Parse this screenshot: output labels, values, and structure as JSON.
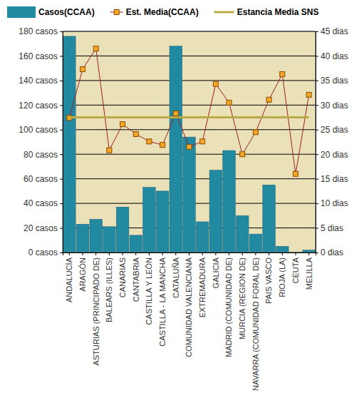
{
  "chart_data": {
    "type": "bar",
    "categories": [
      "ANDALUCÍA",
      "ARAGÓN",
      "ASTURIAS (PRINCIPADO DE)",
      "BALEARS (ILLES)",
      "CANARIAS",
      "CANTABRIA",
      "CASTILLA Y LEÓN",
      "CASTILLA - LA MANCHA",
      "CATALUÑA",
      "COMUNIDAD VALENCIANA",
      "EXTREMADURA",
      "GALICIA",
      "MADRID (COMUNIDAD DE)",
      "MURCIA (REGION DE)",
      "NAVARRA (COMUNIDAD FORAL DE)",
      "PAIS VASCO",
      "RIOJA (LA)",
      "CEUTA",
      "MELILLA"
    ],
    "series": [
      {
        "name": "Casos(CCAA)",
        "type": "bar",
        "color": "#2189a0",
        "values": [
          176,
          23,
          27,
          21,
          37,
          14,
          53,
          50,
          168,
          94,
          25,
          67,
          83,
          30,
          15,
          55,
          5,
          0,
          2
        ]
      },
      {
        "name": "Est. Media(CCAA)",
        "type": "line",
        "axis": "y2",
        "color": "#9a1f1f",
        "marker": "square",
        "values": [
          27.4,
          37.3,
          41.5,
          20.8,
          26.1,
          24.1,
          22.6,
          21.9,
          28.3,
          21.5,
          22.6,
          34.3,
          30.5,
          20.0,
          24.5,
          31.1,
          36.3,
          16.0,
          32.1
        ]
      },
      {
        "name": "Estancia Media SNS",
        "type": "line",
        "axis": "y2",
        "color": "#b9aa45",
        "marker": "none",
        "values": [
          27.5,
          27.5,
          27.5,
          27.5,
          27.5,
          27.5,
          27.5,
          27.5,
          27.5,
          27.5,
          27.5,
          27.5,
          27.5,
          27.5,
          27.5,
          27.5,
          27.5,
          27.5,
          27.5
        ]
      }
    ],
    "ylim": [
      0,
      180
    ],
    "yticks": [
      {
        "value": 0,
        "label": "0 casos"
      },
      {
        "value": 20,
        "label": "20 casos"
      },
      {
        "value": 40,
        "label": "40 casos"
      },
      {
        "value": 60,
        "label": "60 casos"
      },
      {
        "value": 80,
        "label": "80 casos"
      },
      {
        "value": 100,
        "label": "100 casos"
      },
      {
        "value": 120,
        "label": "120 casos"
      },
      {
        "value": 140,
        "label": "140 casos"
      },
      {
        "value": 160,
        "label": "160 casos"
      },
      {
        "value": 180,
        "label": "180 casos"
      }
    ],
    "y2lim": [
      0,
      45
    ],
    "y2ticks": [
      {
        "value": 0,
        "label": "0 dias"
      },
      {
        "value": 5,
        "label": "5 dias"
      },
      {
        "value": 10,
        "label": "10 dias"
      },
      {
        "value": 15,
        "label": "15 dias"
      },
      {
        "value": 20,
        "label": "20 dias"
      },
      {
        "value": 25,
        "label": "25 dias"
      },
      {
        "value": 30,
        "label": "30 dias"
      },
      {
        "value": 35,
        "label": "35 dias"
      },
      {
        "value": 40,
        "label": "40 dias"
      },
      {
        "value": 45,
        "label": "45 dias"
      }
    ],
    "grid": true,
    "legend": "top"
  }
}
